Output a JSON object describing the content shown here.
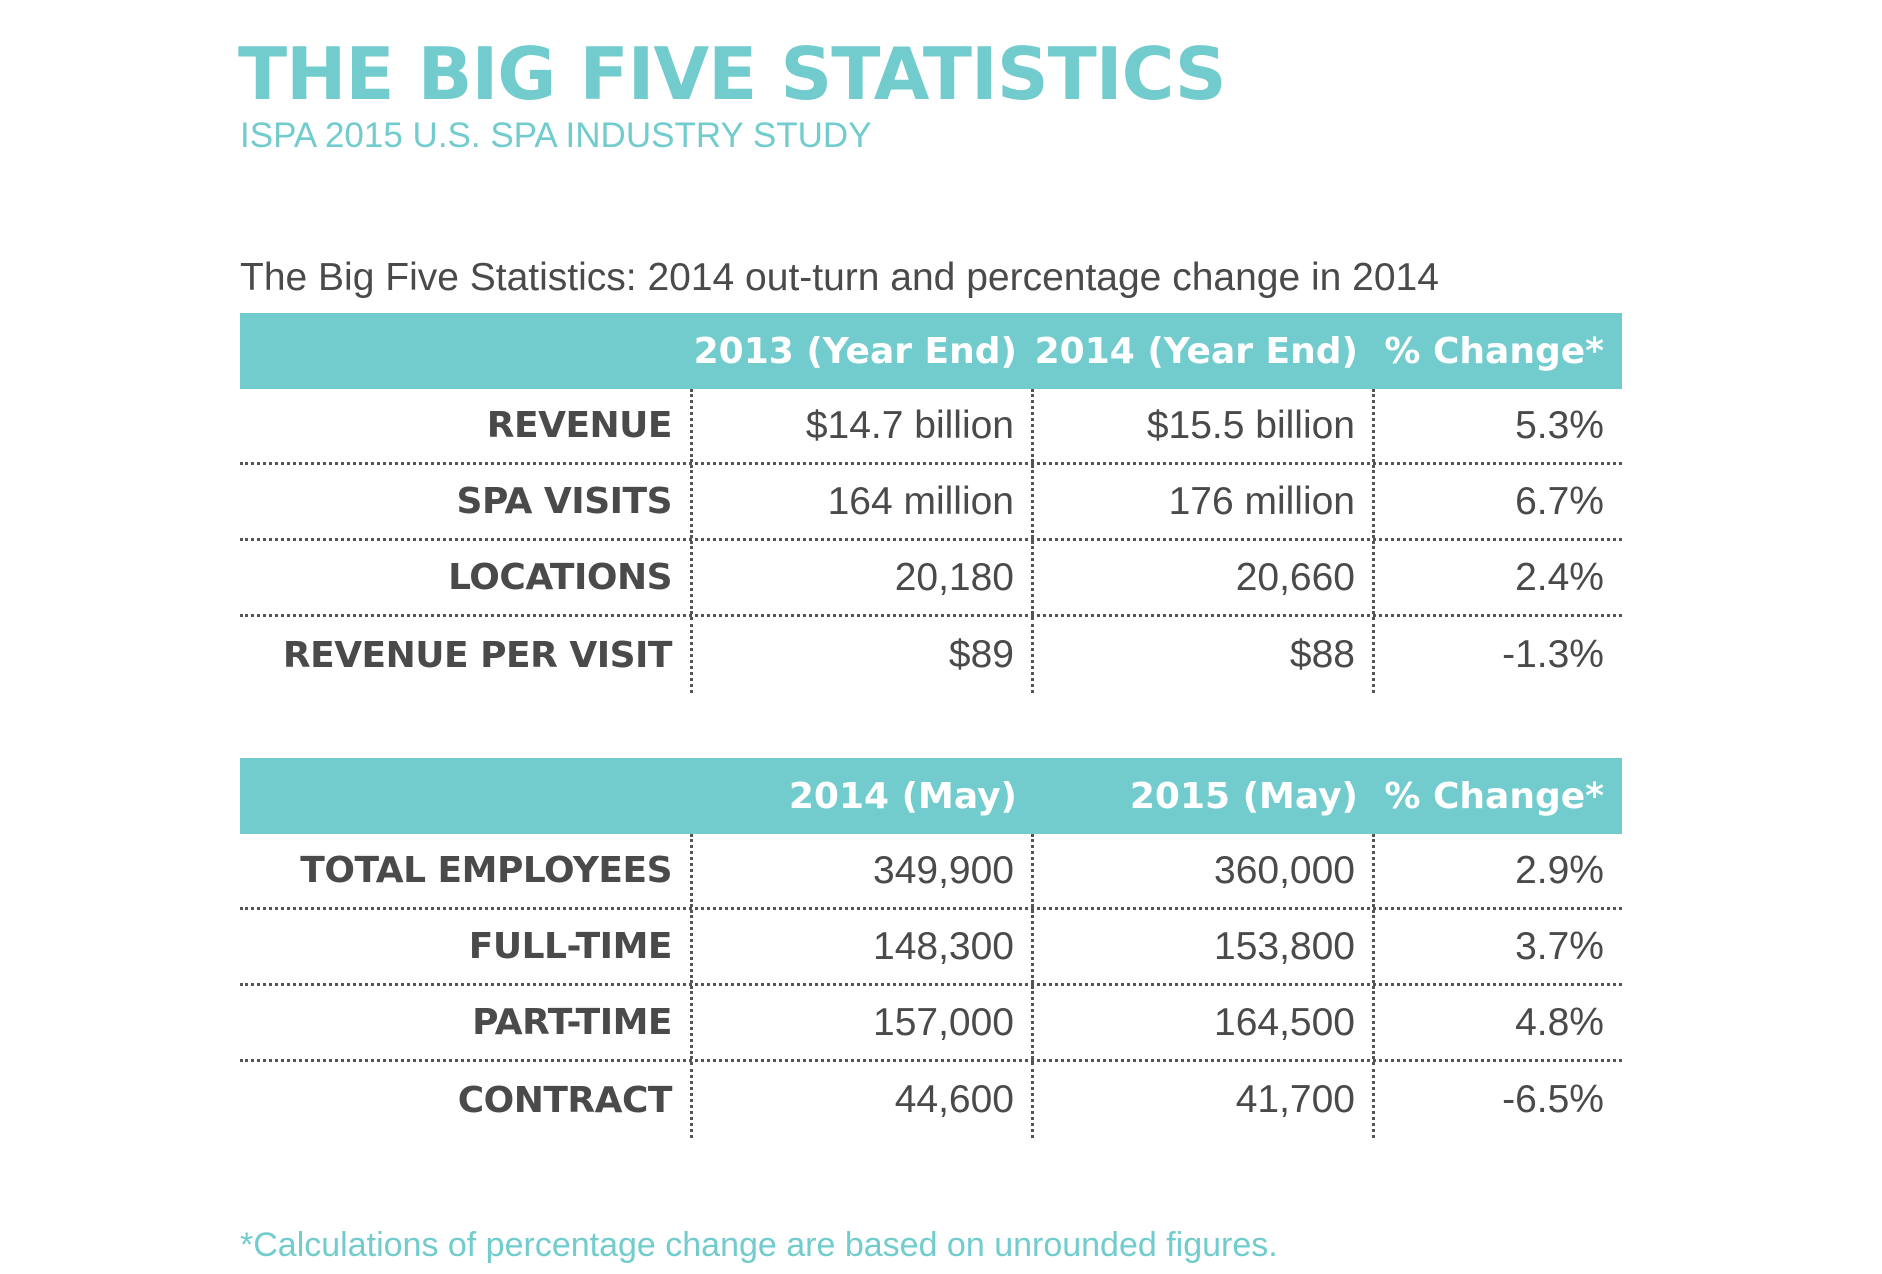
{
  "title": "THE BIG FIVE STATISTICS",
  "subtitle": "ISPA 2015 U.S. SPA INDUSTRY STUDY",
  "caption": "The Big Five Statistics: 2014 out-turn and percentage change in 2014",
  "footnote": "*Calculations of percentage change are based on unrounded figures.",
  "colors": {
    "accent": "#72cccd",
    "text": "#4a4a4a",
    "header_text": "#ffffff"
  },
  "chart_data": [
    {
      "type": "table",
      "columns": [
        "",
        "2013 (Year End)",
        "2014 (Year End)",
        "% Change*"
      ],
      "rows": [
        {
          "label": "REVENUE",
          "v1": "$14.7 billion",
          "v2": "$15.5 billion",
          "pct": "5.3%"
        },
        {
          "label": "SPA VISITS",
          "v1": "164 million",
          "v2": "176 million",
          "pct": "6.7%"
        },
        {
          "label": "LOCATIONS",
          "v1": "20,180",
          "v2": "20,660",
          "pct": "2.4%"
        },
        {
          "label": "REVENUE PER VISIT",
          "v1": "$89",
          "v2": "$88",
          "pct": "-1.3%"
        }
      ]
    },
    {
      "type": "table",
      "columns": [
        "",
        "2014 (May)",
        "2015 (May)",
        "% Change*"
      ],
      "rows": [
        {
          "label": "TOTAL EMPLOYEES",
          "v1": "349,900",
          "v2": "360,000",
          "pct": "2.9%"
        },
        {
          "label": "FULL-TIME",
          "v1": "148,300",
          "v2": "153,800",
          "pct": "3.7%"
        },
        {
          "label": "PART-TIME",
          "v1": "157,000",
          "v2": "164,500",
          "pct": "4.8%"
        },
        {
          "label": "CONTRACT",
          "v1": "44,600",
          "v2": "41,700",
          "pct": "-6.5%"
        }
      ]
    }
  ]
}
